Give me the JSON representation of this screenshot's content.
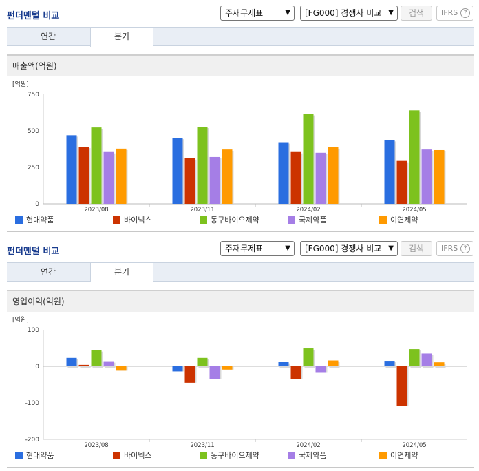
{
  "panels": [
    {
      "title": "펀더멘털 비교",
      "select_statement": "주재무제표",
      "select_compare": "[FG000] 경쟁사 비교",
      "search_label": "검색",
      "ifrs_label": "IFRS",
      "help_label": "?",
      "tabs": [
        "연간",
        "분기"
      ],
      "metric_label": "매출액(억원)",
      "chart_data": {
        "type": "bar",
        "unit_label": "[억원]",
        "categories": [
          "2023/08",
          "2023/11",
          "2024/02",
          "2024/05"
        ],
        "ylim": [
          0,
          750
        ],
        "yticks": [
          0,
          250,
          500,
          750
        ],
        "grid": false,
        "legend_position": "bottom",
        "series": [
          {
            "name": "현대약품",
            "color": "#2a6ee0",
            "values": [
              470,
              452,
              422,
              437
            ]
          },
          {
            "name": "바이넥스",
            "color": "#cc3300",
            "values": [
              391,
              312,
              355,
              294
            ]
          },
          {
            "name": "동구바이오제약",
            "color": "#7dc21e",
            "values": [
              523,
              528,
              615,
              640
            ]
          },
          {
            "name": "국제약품",
            "color": "#a57ee6",
            "values": [
              355,
              321,
              350,
              372
            ]
          },
          {
            "name": "이연제약",
            "color": "#ff9a00",
            "values": [
              378,
              372,
              387,
              368
            ]
          }
        ]
      }
    },
    {
      "title": "펀더멘털 비교",
      "select_statement": "주재무제표",
      "select_compare": "[FG000] 경쟁사 비교",
      "search_label": "검색",
      "ifrs_label": "IFRS",
      "help_label": "?",
      "tabs": [
        "연간",
        "분기"
      ],
      "metric_label": "영업이익(억원)",
      "chart_data": {
        "type": "bar",
        "unit_label": "[억원]",
        "categories": [
          "2023/08",
          "2023/11",
          "2024/02",
          "2024/05"
        ],
        "ylim": [
          -200,
          100
        ],
        "yticks": [
          -200,
          -100,
          0,
          100
        ],
        "grid": false,
        "legend_position": "bottom",
        "series": [
          {
            "name": "현대약품",
            "color": "#2a6ee0",
            "values": [
              23,
              -14,
              12,
              15
            ]
          },
          {
            "name": "바이넥스",
            "color": "#cc3300",
            "values": [
              4,
              -45,
              -35,
              -108
            ]
          },
          {
            "name": "동구바이오제약",
            "color": "#7dc21e",
            "values": [
              44,
              23,
              49,
              47
            ]
          },
          {
            "name": "국제약품",
            "color": "#a57ee6",
            "values": [
              14,
              -35,
              -16,
              35
            ]
          },
          {
            "name": "이연제약",
            "color": "#ff9a00",
            "values": [
              -12,
              -9,
              16,
              11
            ]
          }
        ]
      }
    }
  ]
}
